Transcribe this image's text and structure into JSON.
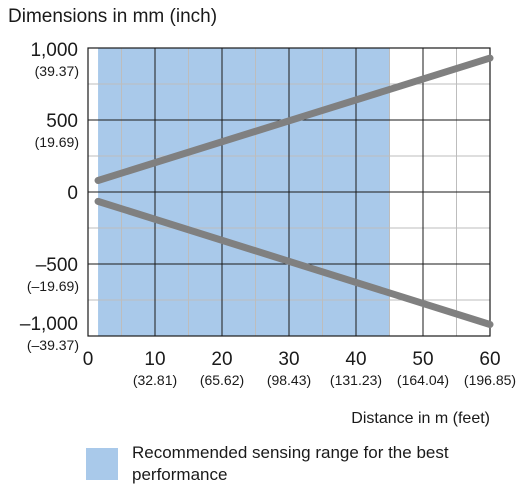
{
  "chart_data": {
    "type": "line",
    "title": "Dimensions in mm (inch)",
    "xlabel": "Distance in m (feet)",
    "xlim": [
      0,
      60
    ],
    "ylim": [
      -1000,
      1000
    ],
    "x_ticks": [
      {
        "value": 0,
        "label": "0",
        "sub": ""
      },
      {
        "value": 10,
        "label": "10",
        "sub": "(32.81)"
      },
      {
        "value": 20,
        "label": "20",
        "sub": "(65.62)"
      },
      {
        "value": 30,
        "label": "30",
        "sub": "(98.43)"
      },
      {
        "value": 40,
        "label": "40",
        "sub": "(131.23)"
      },
      {
        "value": 50,
        "label": "50",
        "sub": "(164.04)"
      },
      {
        "value": 60,
        "label": "60",
        "sub": "(196.85)"
      }
    ],
    "y_ticks": [
      {
        "value": 1000,
        "label": "1,000",
        "sub": "(39.37)"
      },
      {
        "value": 500,
        "label": "500",
        "sub": "(19.69)"
      },
      {
        "value": 0,
        "label": "0",
        "sub": ""
      },
      {
        "value": -500,
        "label": "–500",
        "sub": "(–19.69)"
      },
      {
        "value": -1000,
        "label": "–1,000",
        "sub": "(–39.37)"
      }
    ],
    "grid": true,
    "grid_x_step": 5,
    "grid_y_step": 250,
    "shaded_range": {
      "x": [
        1.5,
        45
      ],
      "color": "#a9c9ea"
    },
    "series": [
      {
        "x": [
          1.5,
          60
        ],
        "y": [
          80,
          930
        ],
        "color": "#808080"
      },
      {
        "x": [
          1.5,
          60
        ],
        "y": [
          -65,
          -920
        ],
        "color": "#808080"
      }
    ]
  },
  "legend": {
    "swatch_color": "#a9c9ea",
    "text": "Recommended sensing range for the best performance"
  }
}
